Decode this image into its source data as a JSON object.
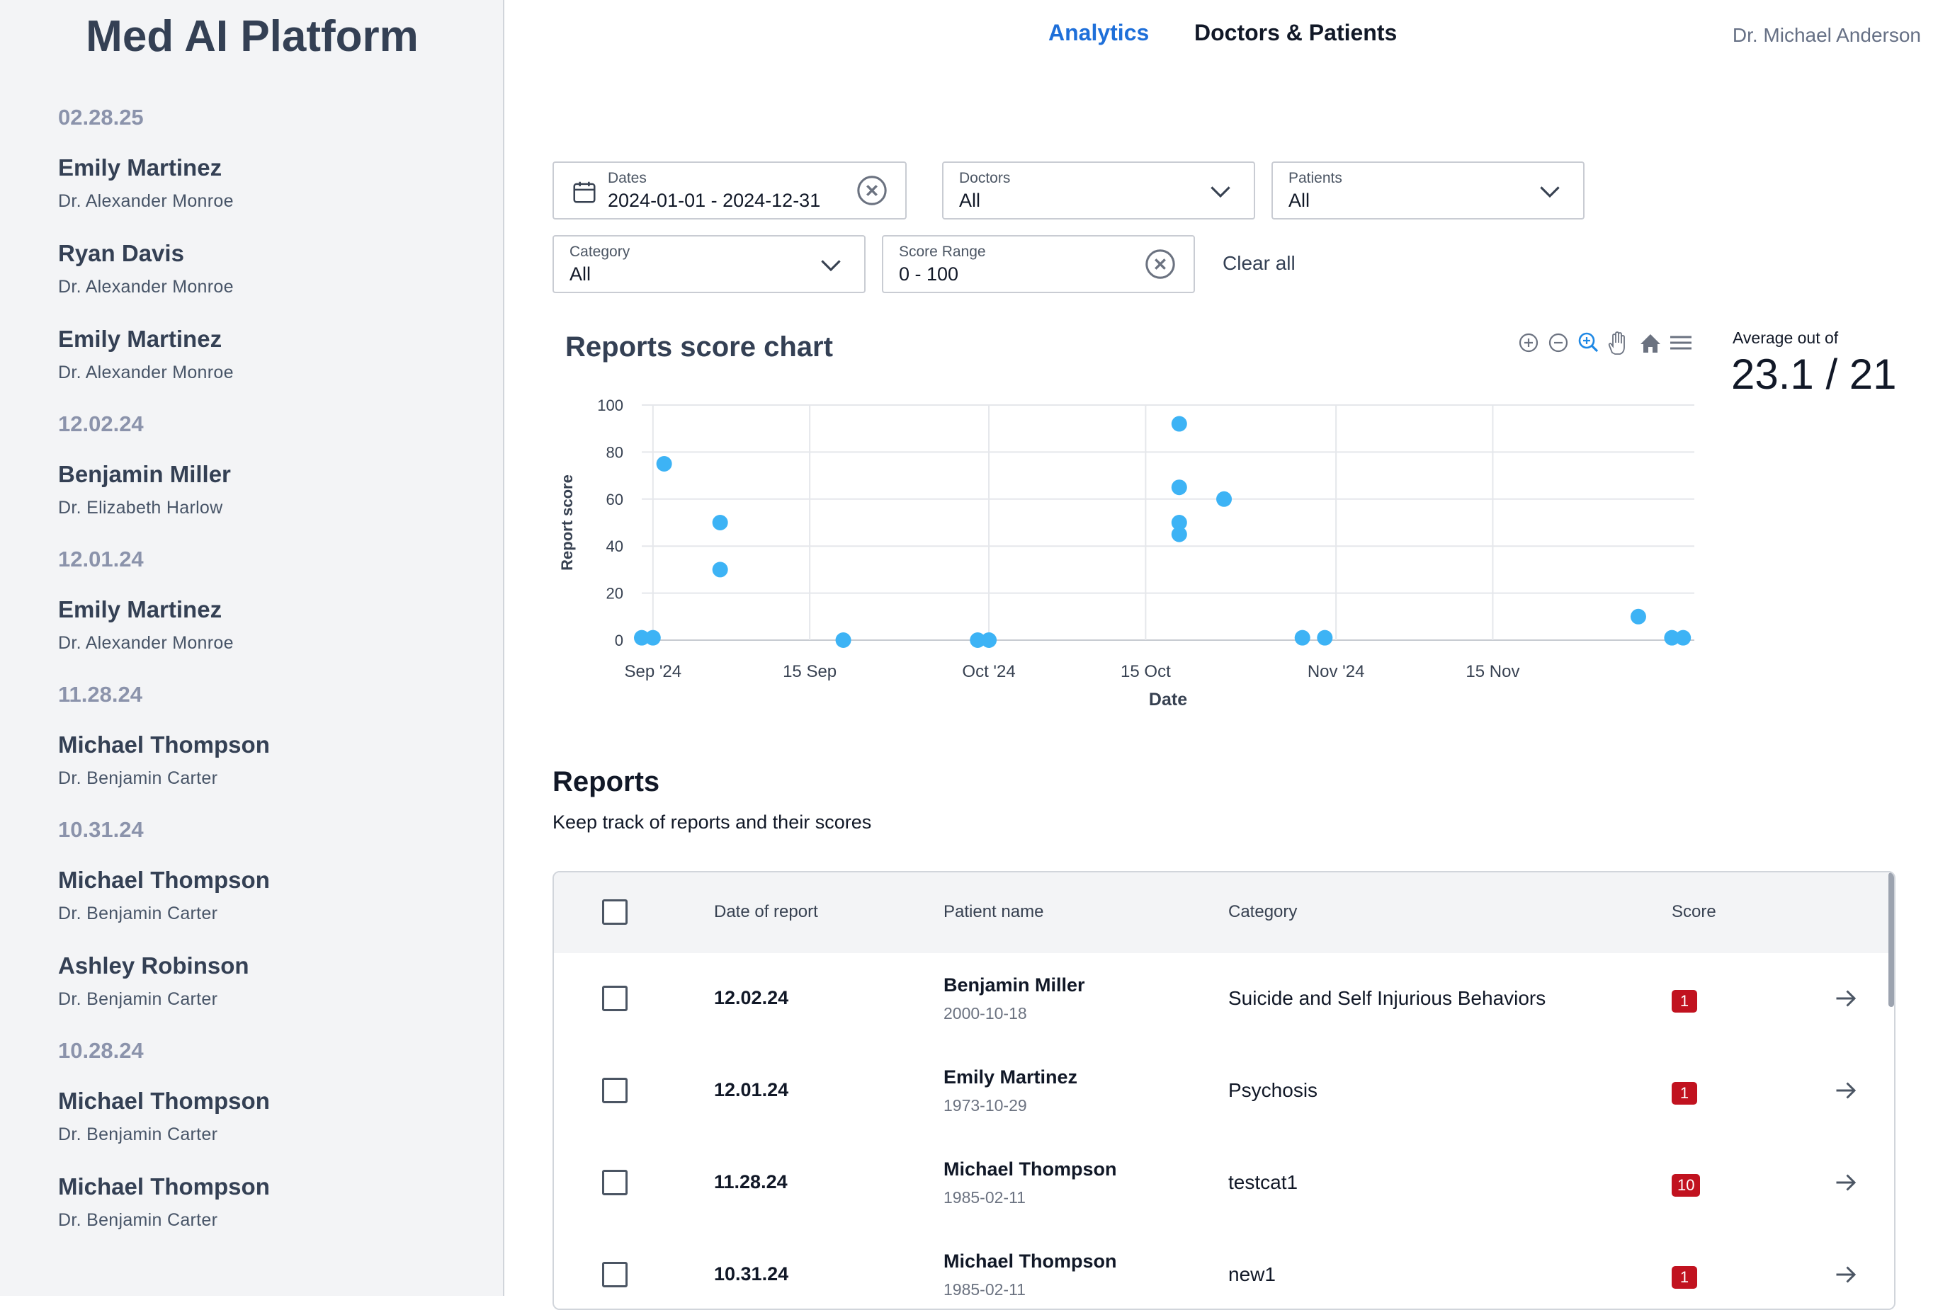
{
  "app": {
    "title": "Med AI Platform"
  },
  "header": {
    "tabs": [
      {
        "label": "Analytics"
      },
      {
        "label": "Doctors & Patients"
      }
    ],
    "user_name": "Dr. Michael Anderson"
  },
  "sidebar": {
    "groups": [
      {
        "date": "02.28.25",
        "items": [
          {
            "patient": "Emily Martinez",
            "doctor": "Dr. Alexander Monroe"
          },
          {
            "patient": "Ryan Davis",
            "doctor": "Dr. Alexander Monroe"
          },
          {
            "patient": "Emily Martinez",
            "doctor": "Dr. Alexander Monroe"
          }
        ]
      },
      {
        "date": "12.02.24",
        "items": [
          {
            "patient": "Benjamin Miller",
            "doctor": "Dr. Elizabeth Harlow"
          }
        ]
      },
      {
        "date": "12.01.24",
        "items": [
          {
            "patient": "Emily Martinez",
            "doctor": "Dr. Alexander Monroe"
          }
        ]
      },
      {
        "date": "11.28.24",
        "items": [
          {
            "patient": "Michael Thompson",
            "doctor": "Dr. Benjamin Carter"
          }
        ]
      },
      {
        "date": "10.31.24",
        "items": [
          {
            "patient": "Michael Thompson",
            "doctor": "Dr. Benjamin Carter"
          },
          {
            "patient": "Ashley Robinson",
            "doctor": "Dr. Benjamin Carter"
          }
        ]
      },
      {
        "date": "10.28.24",
        "items": [
          {
            "patient": "Michael Thompson",
            "doctor": "Dr. Benjamin Carter"
          },
          {
            "patient": "Michael Thompson",
            "doctor": "Dr. Benjamin Carter"
          }
        ]
      }
    ]
  },
  "filters": {
    "dates": {
      "label": "Dates",
      "value": "2024-01-01 - 2024-12-31"
    },
    "doctors": {
      "label": "Doctors",
      "value": "All"
    },
    "patients": {
      "label": "Patients",
      "value": "All"
    },
    "category": {
      "label": "Category",
      "value": "All"
    },
    "score_range": {
      "label": "Score Range",
      "value": "0 - 100"
    },
    "clear_all": "Clear all"
  },
  "chart": {
    "title": "Reports score chart",
    "toolbar_icons": [
      "zoom-in-icon",
      "zoom-out-icon",
      "zoom-select-icon",
      "pan-hand-icon",
      "home-reset-icon",
      "menu-icon"
    ],
    "average_label": "Average out of",
    "average_value": "23.1 / 21",
    "colors": {
      "point": "#3db3f5",
      "grid": "#e5e7eb"
    }
  },
  "chart_data": {
    "type": "scatter",
    "title": "Reports score chart",
    "xlabel": "Date",
    "ylabel": "Report score",
    "ylim": [
      0,
      100
    ],
    "xlim": [
      "2024-08-31",
      "2024-12-03"
    ],
    "x_ticks": [
      {
        "date": "2024-09-01",
        "label": "Sep '24"
      },
      {
        "date": "2024-09-15",
        "label": "15 Sep"
      },
      {
        "date": "2024-10-01",
        "label": "Oct '24"
      },
      {
        "date": "2024-10-15",
        "label": "15 Oct"
      },
      {
        "date": "2024-11-01",
        "label": "Nov '24"
      },
      {
        "date": "2024-11-15",
        "label": "15 Nov"
      }
    ],
    "y_ticks": [
      0,
      20,
      40,
      60,
      80,
      100
    ],
    "points": [
      {
        "x": "2024-08-31",
        "y": 1
      },
      {
        "x": "2024-09-01",
        "y": 1
      },
      {
        "x": "2024-09-02",
        "y": 75
      },
      {
        "x": "2024-09-07",
        "y": 50
      },
      {
        "x": "2024-09-07",
        "y": 30
      },
      {
        "x": "2024-09-18",
        "y": 0
      },
      {
        "x": "2024-09-30",
        "y": 0
      },
      {
        "x": "2024-10-01",
        "y": 0
      },
      {
        "x": "2024-10-18",
        "y": 92
      },
      {
        "x": "2024-10-18",
        "y": 65
      },
      {
        "x": "2024-10-18",
        "y": 50
      },
      {
        "x": "2024-10-18",
        "y": 45
      },
      {
        "x": "2024-10-22",
        "y": 60
      },
      {
        "x": "2024-10-29",
        "y": 1
      },
      {
        "x": "2024-10-31",
        "y": 1
      },
      {
        "x": "2024-11-28",
        "y": 10
      },
      {
        "x": "2024-12-01",
        "y": 1
      },
      {
        "x": "2024-12-02",
        "y": 1
      }
    ]
  },
  "reports": {
    "title": "Reports",
    "subtitle": "Keep track of reports and their scores",
    "columns": [
      "Date of report",
      "Patient name",
      "Category",
      "Score"
    ],
    "rows": [
      {
        "date": "12.02.24",
        "patient": "Benjamin Miller",
        "dob": "2000-10-18",
        "category": "Suicide and Self Injurious Behaviors",
        "score": "1"
      },
      {
        "date": "12.01.24",
        "patient": "Emily Martinez",
        "dob": "1973-10-29",
        "category": "Psychosis",
        "score": "1"
      },
      {
        "date": "11.28.24",
        "patient": "Michael Thompson",
        "dob": "1985-02-11",
        "category": "testcat1",
        "score": "10"
      },
      {
        "date": "10.31.24",
        "patient": "Michael Thompson",
        "dob": "1985-02-11",
        "category": "new1",
        "score": "1"
      }
    ]
  }
}
